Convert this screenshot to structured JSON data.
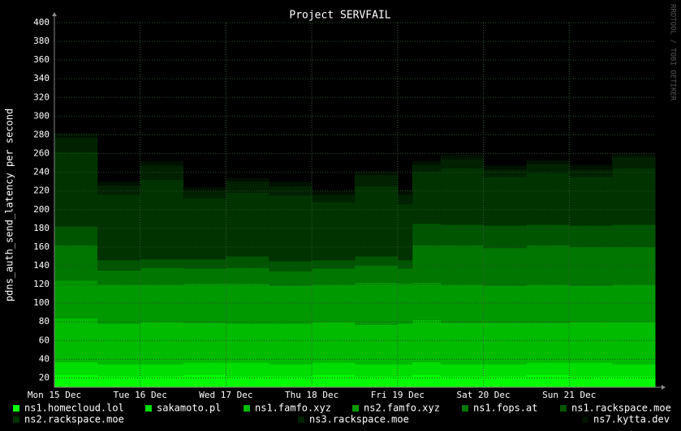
{
  "chart_data": {
    "type": "area",
    "stacked": true,
    "title": "Project SERVFAIL",
    "y_label": "pdns_auth_send_latency per second",
    "watermark": "RRDTOOL / TOBI OETIKER",
    "x": [
      0,
      0.5,
      1,
      1.5,
      2,
      2.5,
      3,
      3.5,
      4,
      4.17,
      4.5,
      5,
      5.5,
      6,
      6.5
    ],
    "xlim": [
      0,
      7
    ],
    "xticks": [
      {
        "value": 0,
        "label": "Mon 15 Dec"
      },
      {
        "value": 1,
        "label": "Tue 16 Dec"
      },
      {
        "value": 2,
        "label": "Wed 17 Dec"
      },
      {
        "value": 3,
        "label": "Thu 18 Dec"
      },
      {
        "value": 4,
        "label": "Fri 19 Dec"
      },
      {
        "value": 5,
        "label": "Sat 20 Dec"
      },
      {
        "value": 6,
        "label": "Sun 21 Dec"
      }
    ],
    "ylim": [
      10,
      400
    ],
    "yticks": [
      20,
      40,
      60,
      80,
      100,
      120,
      140,
      160,
      180,
      200,
      220,
      240,
      260,
      280,
      300,
      320,
      340,
      360,
      380,
      400
    ],
    "grid": true,
    "series": [
      {
        "name": "ns1.homecloud.lol",
        "color": "#00ff00",
        "values": [
          23,
          22,
          22,
          23,
          22,
          22,
          23,
          22,
          22,
          23,
          22,
          22,
          23,
          22,
          22
        ]
      },
      {
        "name": "sakamoto.pl",
        "color": "#00dd00",
        "values": [
          14,
          13,
          13,
          13,
          14,
          13,
          13,
          13,
          13,
          14,
          13,
          13,
          13,
          14,
          13
        ]
      },
      {
        "name": "ns1.famfo.xyz",
        "color": "#00bb00",
        "values": [
          47,
          43,
          45,
          43,
          42,
          43,
          44,
          42,
          43,
          45,
          44,
          44,
          43,
          44,
          45
        ]
      },
      {
        "name": "ns2.famfo.xyz",
        "color": "#009900",
        "values": [
          40,
          42,
          40,
          42,
          43,
          41,
          40,
          45,
          43,
          40,
          41,
          40,
          41,
          39,
          40
        ]
      },
      {
        "name": "ns1.fops.at",
        "color": "#007700",
        "values": [
          38,
          15,
          18,
          16,
          17,
          15,
          17,
          18,
          16,
          40,
          42,
          40,
          42,
          41,
          40
        ]
      },
      {
        "name": "ns1.rackspace.moe",
        "color": "#005500",
        "values": [
          20,
          11,
          9,
          10,
          12,
          11,
          9,
          10,
          9,
          23,
          22,
          24,
          22,
          23,
          24
        ]
      },
      {
        "name": "ns2.rackspace.moe",
        "color": "#003300",
        "values": [
          80,
          70,
          85,
          65,
          68,
          70,
          62,
          75,
          60,
          55,
          60,
          52,
          55,
          52,
          60
        ]
      },
      {
        "name": "ns3.rackspace.moe",
        "color": "#002200",
        "values": [
          15,
          10,
          15,
          8,
          12,
          10,
          8,
          12,
          10,
          8,
          10,
          8,
          10,
          8,
          12
        ]
      },
      {
        "name": "ns7.kytta.dev",
        "color": "#001100",
        "values": [
          5,
          4,
          5,
          4,
          4,
          5,
          4,
          4,
          5,
          4,
          5,
          4,
          4,
          5,
          4
        ]
      }
    ]
  }
}
